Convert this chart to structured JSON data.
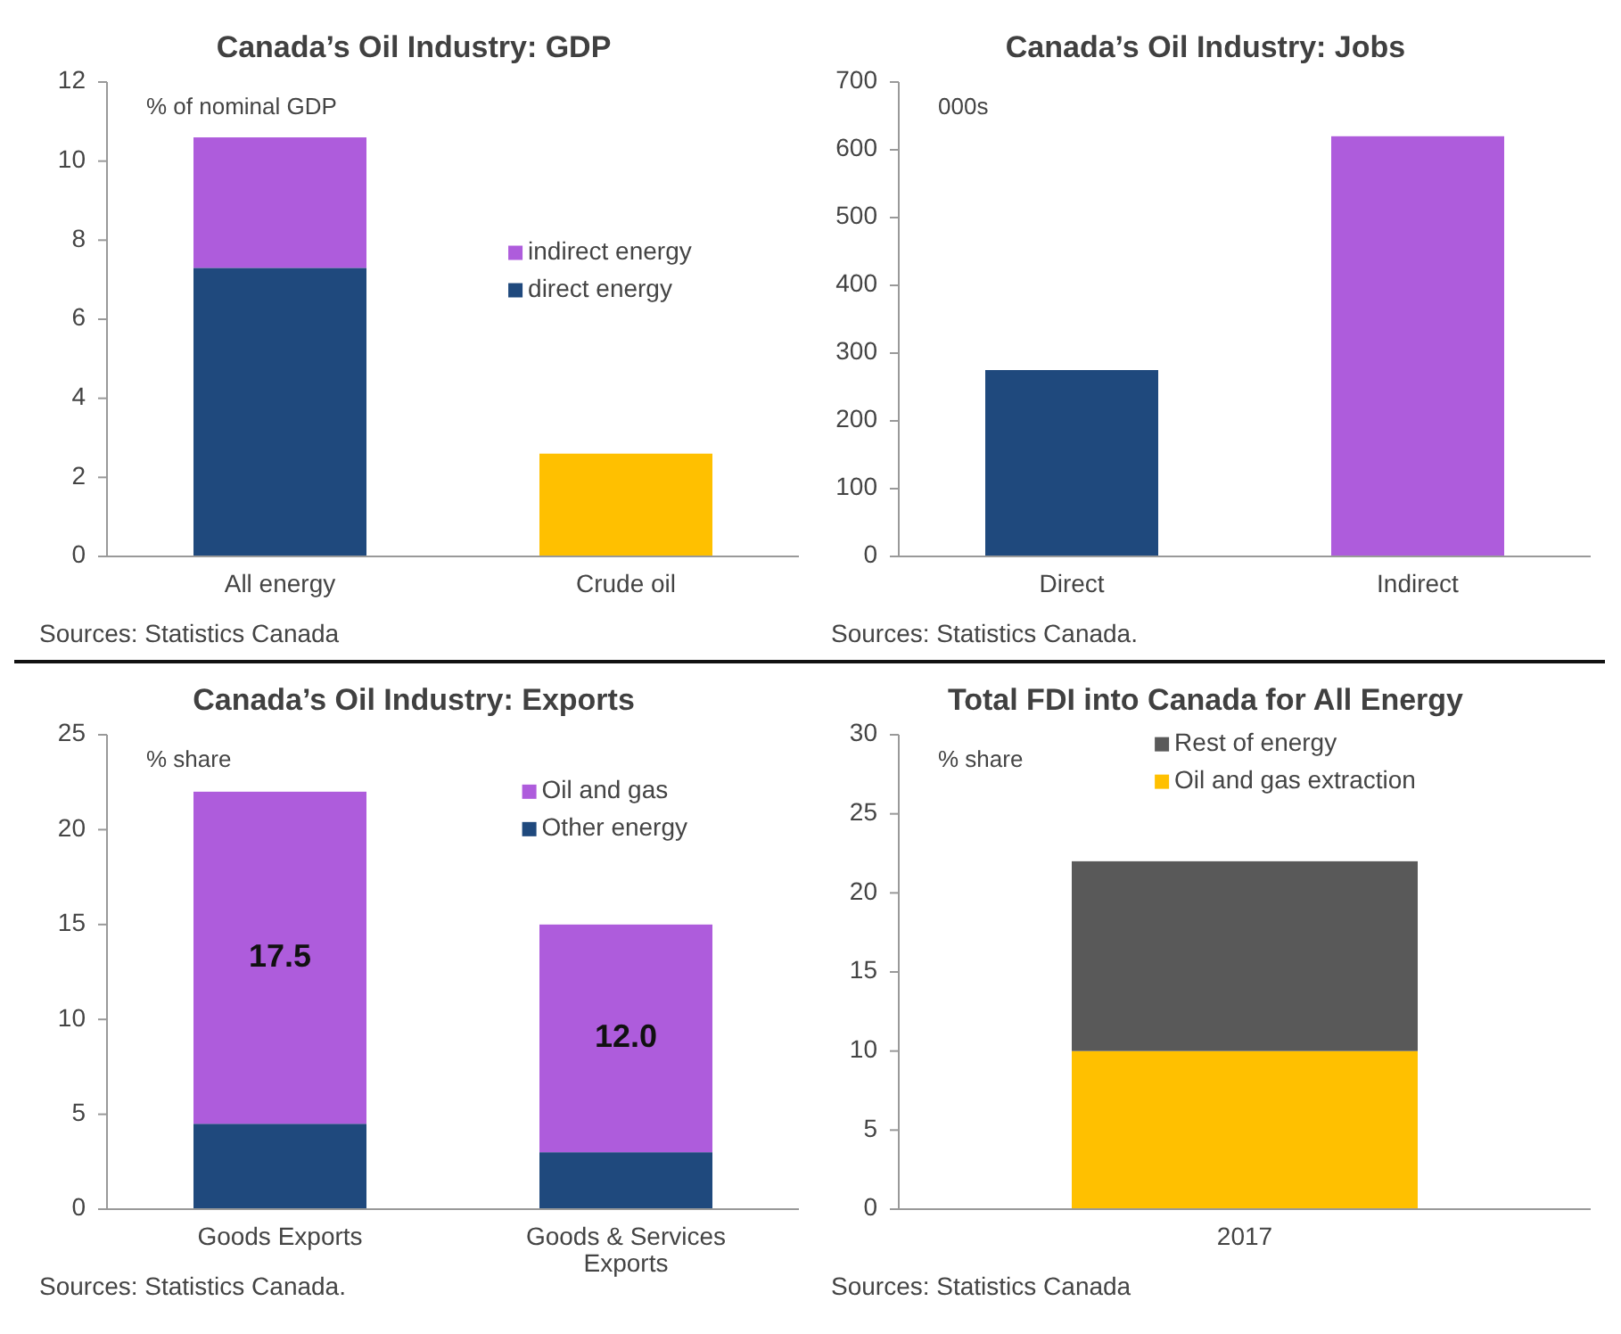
{
  "chart_data": [
    {
      "type": "bar",
      "title": "Canada’s Oil Industry: GDP",
      "ylabel": "% of nominal GDP",
      "categories": [
        "All energy",
        "Crude oil"
      ],
      "stacked": true,
      "ylim": [
        0,
        12
      ],
      "yticks": [
        0,
        2,
        4,
        6,
        8,
        10,
        12
      ],
      "legend": "right",
      "annotations": [
        "Sources: Statistics Canada"
      ],
      "series": [
        {
          "name": "direct energy",
          "color": "#1f497d",
          "values": [
            7.3,
            null
          ]
        },
        {
          "name": "indirect energy",
          "color": "#ae5cdc",
          "values": [
            3.3,
            null
          ]
        },
        {
          "color": "#ffc000",
          "values": [
            null,
            2.6
          ]
        }
      ]
    },
    {
      "type": "bar",
      "title": "Canada’s Oil Industry: Jobs",
      "ylabel": "000s",
      "categories": [
        "Direct",
        "Indirect"
      ],
      "values": [
        275,
        620
      ],
      "colors": [
        "#1f497d",
        "#ae5cdc"
      ],
      "ylim": [
        0,
        700
      ],
      "yticks": [
        0,
        100,
        200,
        300,
        400,
        500,
        600,
        700
      ],
      "annotations": [
        "Sources: Statistics Canada."
      ]
    },
    {
      "type": "bar",
      "title": "Canada’s Oil Industry: Exports",
      "ylabel": "% share",
      "categories": [
        "Goods Exports",
        "Goods & Services Exports"
      ],
      "stacked": true,
      "ylim": [
        0,
        25
      ],
      "yticks": [
        0,
        5,
        10,
        15,
        20,
        25
      ],
      "legend": "top right",
      "annotations": [
        "Sources: Statistics Canada."
      ],
      "series": [
        {
          "name": "Other energy",
          "color": "#1f497d",
          "values": [
            4.5,
            3.0
          ]
        },
        {
          "name": "Oil and gas",
          "color": "#ae5cdc",
          "values": [
            17.5,
            12.0
          ],
          "value_labels": [
            "17.5",
            "12.0"
          ]
        }
      ]
    },
    {
      "type": "bar",
      "title": "Total FDI into Canada for All Energy",
      "ylabel": "% share",
      "categories": [
        "2017"
      ],
      "stacked": true,
      "ylim": [
        0,
        30
      ],
      "yticks": [
        0,
        5,
        10,
        15,
        20,
        25,
        30
      ],
      "legend": "top",
      "annotations": [
        "Sources: Statistics Canada"
      ],
      "series": [
        {
          "name": "Oil and gas extraction",
          "color": "#ffc000",
          "values": [
            10
          ]
        },
        {
          "name": "Rest of energy",
          "color": "#595959",
          "values": [
            12
          ]
        }
      ]
    }
  ]
}
